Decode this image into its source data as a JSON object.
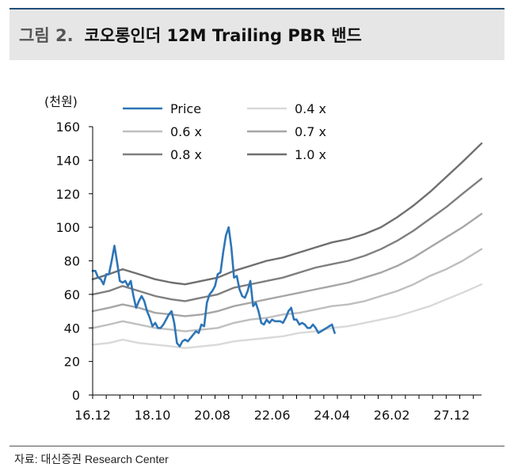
{
  "header": {
    "figure_label": "그림 2.",
    "title": "코오롱인더 12M Trailing PBR 밴드"
  },
  "footer": {
    "source": "자료: 대신증권 Research Center"
  },
  "colors": {
    "price": "#2e75b6",
    "band_1.0x": "#6f6f6f",
    "band_0.8x": "#7f7f7f",
    "band_0.7x": "#a6a6a6",
    "band_0.6x": "#bfbfbf",
    "band_0.4x": "#d9d9d9"
  },
  "chart_data": {
    "type": "line",
    "title": "코오롱인더 12M Trailing PBR 밴드",
    "yunit": "(천원)",
    "ylim": [
      0,
      160
    ],
    "yticks": [
      0,
      20,
      40,
      60,
      80,
      100,
      120,
      140,
      160
    ],
    "xlim": [
      "2016-12",
      "2028-11"
    ],
    "xticks": [
      "16.12",
      "18.10",
      "20.08",
      "22.06",
      "24.04",
      "26.02",
      "27.12"
    ],
    "grid": false,
    "legend": {
      "position": "top",
      "entries": [
        "Price",
        "0.4 x",
        "0.6 x",
        "0.7 x",
        "0.8 x",
        "1.0 x"
      ]
    },
    "series": [
      {
        "name": "Price",
        "x": [
          "2016-12",
          "2017-01",
          "2017-02",
          "2017-03",
          "2017-04",
          "2017-05",
          "2017-06",
          "2017-07",
          "2017-08",
          "2017-09",
          "2017-10",
          "2017-11",
          "2017-12",
          "2018-01",
          "2018-02",
          "2018-03",
          "2018-04",
          "2018-05",
          "2018-06",
          "2018-07",
          "2018-08",
          "2018-09",
          "2018-10",
          "2018-11",
          "2018-12",
          "2019-01",
          "2019-02",
          "2019-03",
          "2019-04",
          "2019-05",
          "2019-06",
          "2019-07",
          "2019-08",
          "2019-09",
          "2019-10",
          "2019-11",
          "2019-12",
          "2020-01",
          "2020-02",
          "2020-03",
          "2020-04",
          "2020-05",
          "2020-06",
          "2020-07",
          "2020-08",
          "2020-09",
          "2020-10",
          "2020-11",
          "2020-12",
          "2021-01",
          "2021-02",
          "2021-03",
          "2021-04",
          "2021-05",
          "2021-06",
          "2021-07",
          "2021-08",
          "2021-09",
          "2021-10",
          "2021-11",
          "2021-12",
          "2022-01",
          "2022-02",
          "2022-03",
          "2022-04",
          "2022-05",
          "2022-06",
          "2022-07",
          "2022-08",
          "2022-09",
          "2022-10",
          "2022-11",
          "2022-12",
          "2023-01",
          "2023-02",
          "2023-03",
          "2023-04",
          "2023-05",
          "2023-06",
          "2023-07",
          "2023-08",
          "2023-09",
          "2023-10",
          "2023-11",
          "2023-12",
          "2024-01",
          "2024-02",
          "2024-03",
          "2024-04",
          "2024-05"
        ],
        "values": [
          74,
          74,
          70,
          69,
          66,
          72,
          72,
          80,
          89,
          79,
          68,
          67,
          68,
          65,
          68,
          59,
          52,
          56,
          59,
          56,
          50,
          46,
          41,
          43,
          40,
          40,
          42,
          45,
          48,
          50,
          43,
          31,
          29,
          32,
          33,
          32,
          34,
          36,
          38,
          37,
          42,
          41,
          55,
          60,
          62,
          65,
          72,
          73,
          85,
          95,
          100,
          88,
          70,
          71,
          63,
          59,
          58,
          62,
          68,
          53,
          55,
          50,
          43,
          42,
          45,
          43,
          45,
          44,
          44,
          44,
          43,
          46,
          50,
          52,
          45,
          45,
          42,
          43,
          42,
          40,
          40,
          42,
          40,
          37,
          38,
          39,
          40,
          41,
          42,
          37
        ]
      },
      {
        "name": "1.0 x",
        "x": [
          "2016-12",
          "2017-06",
          "2017-11",
          "2018-05",
          "2018-11",
          "2019-05",
          "2019-10",
          "2020-04",
          "2020-10",
          "2021-04",
          "2021-10",
          "2022-04",
          "2022-10",
          "2023-04",
          "2023-10",
          "2024-04",
          "2024-10",
          "2025-04",
          "2025-10",
          "2026-04",
          "2026-10",
          "2027-04",
          "2027-10",
          "2028-04",
          "2028-11"
        ],
        "values": [
          69,
          72,
          75,
          72,
          69,
          67,
          66,
          68,
          70,
          74,
          77,
          80,
          82,
          85,
          88,
          91,
          93,
          96,
          100,
          106,
          113,
          121,
          130,
          139,
          150
        ]
      },
      {
        "name": "0.8 x",
        "x": [
          "2016-12",
          "2017-06",
          "2017-11",
          "2018-05",
          "2018-11",
          "2019-05",
          "2019-10",
          "2020-04",
          "2020-10",
          "2021-04",
          "2021-10",
          "2022-04",
          "2022-10",
          "2023-04",
          "2023-10",
          "2024-04",
          "2024-10",
          "2025-04",
          "2025-10",
          "2026-04",
          "2026-10",
          "2027-04",
          "2027-10",
          "2028-04",
          "2028-11"
        ],
        "values": [
          60,
          62,
          65,
          62,
          59,
          57,
          56,
          58,
          60,
          64,
          66,
          68,
          70,
          73,
          76,
          78,
          80,
          83,
          87,
          92,
          98,
          105,
          112,
          120,
          129
        ]
      },
      {
        "name": "0.7 x",
        "x": [
          "2016-12",
          "2017-06",
          "2017-11",
          "2018-05",
          "2018-11",
          "2019-05",
          "2019-10",
          "2020-04",
          "2020-10",
          "2021-04",
          "2021-10",
          "2022-04",
          "2022-10",
          "2023-04",
          "2023-10",
          "2024-04",
          "2024-10",
          "2025-04",
          "2025-10",
          "2026-04",
          "2026-10",
          "2027-04",
          "2027-10",
          "2028-04",
          "2028-11"
        ],
        "values": [
          50,
          52,
          54,
          52,
          49,
          48,
          47,
          48,
          50,
          53,
          55,
          57,
          59,
          61,
          63,
          65,
          67,
          70,
          73,
          77,
          82,
          88,
          94,
          100,
          108
        ]
      },
      {
        "name": "0.6 x",
        "x": [
          "2016-12",
          "2017-06",
          "2017-11",
          "2018-05",
          "2018-11",
          "2019-05",
          "2019-10",
          "2020-04",
          "2020-10",
          "2021-04",
          "2021-10",
          "2022-04",
          "2022-10",
          "2023-04",
          "2023-10",
          "2024-04",
          "2024-10",
          "2025-04",
          "2025-10",
          "2026-04",
          "2026-10",
          "2027-04",
          "2027-10",
          "2028-04",
          "2028-11"
        ],
        "values": [
          40,
          42,
          44,
          42,
          40,
          39,
          38,
          39,
          40,
          43,
          45,
          46,
          48,
          49,
          51,
          53,
          54,
          56,
          59,
          62,
          66,
          71,
          75,
          80,
          87
        ]
      },
      {
        "name": "0.4 x",
        "x": [
          "2016-12",
          "2017-06",
          "2017-11",
          "2018-05",
          "2018-11",
          "2019-05",
          "2019-10",
          "2020-04",
          "2020-10",
          "2021-04",
          "2021-10",
          "2022-04",
          "2022-10",
          "2023-04",
          "2023-10",
          "2024-04",
          "2024-10",
          "2025-04",
          "2025-10",
          "2026-04",
          "2026-10",
          "2027-04",
          "2027-10",
          "2028-04",
          "2028-11"
        ],
        "values": [
          30,
          31,
          33,
          31,
          30,
          29,
          28,
          29,
          30,
          32,
          33,
          34,
          35,
          37,
          38,
          40,
          41,
          43,
          45,
          47,
          50,
          53,
          57,
          61,
          66
        ]
      }
    ]
  }
}
